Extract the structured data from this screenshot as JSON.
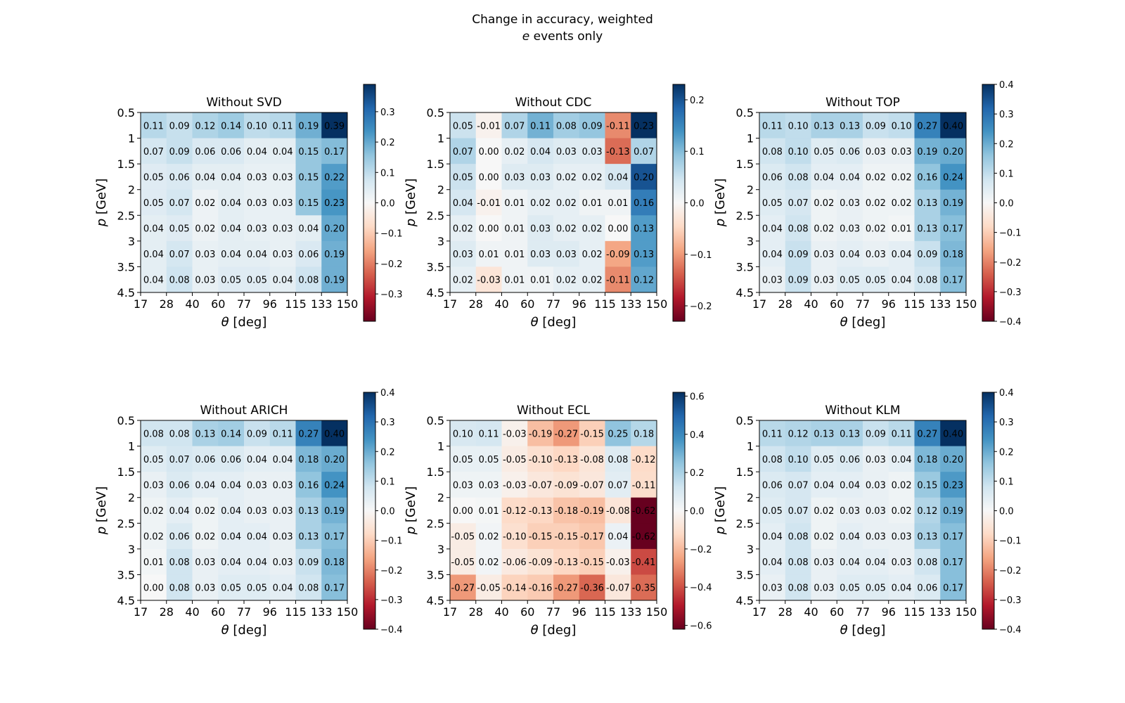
{
  "figure": {
    "title_line1": "Change in accuracy, weighted",
    "title_var": "e",
    "title_line2_rest": " events only"
  },
  "chart_data": [
    {
      "type": "heatmap",
      "title": "Without SVD",
      "xlabel_var": "θ",
      "xlabel_unit": " [deg]",
      "ylabel_var": "p",
      "ylabel_unit": " [GeV]",
      "x_edges": [
        "17",
        "28",
        "40",
        "60",
        "77",
        "96",
        "115",
        "133",
        "150"
      ],
      "y_edges": [
        "0.5",
        "1",
        "1.5",
        "2",
        "2.5",
        "3",
        "3.5",
        "4.5"
      ],
      "values": [
        [
          0.11,
          0.09,
          0.12,
          0.14,
          0.1,
          0.11,
          0.19,
          0.39
        ],
        [
          0.07,
          0.09,
          0.06,
          0.06,
          0.04,
          0.04,
          0.15,
          0.17
        ],
        [
          0.05,
          0.06,
          0.04,
          0.04,
          0.03,
          0.03,
          0.15,
          0.22
        ],
        [
          0.05,
          0.07,
          0.02,
          0.04,
          0.03,
          0.03,
          0.15,
          0.23
        ],
        [
          0.04,
          0.05,
          0.02,
          0.04,
          0.03,
          0.03,
          0.04,
          0.2
        ],
        [
          0.04,
          0.07,
          0.03,
          0.04,
          0.04,
          0.03,
          0.06,
          0.19
        ],
        [
          0.04,
          0.08,
          0.03,
          0.05,
          0.05,
          0.04,
          0.08,
          0.19
        ]
      ],
      "cbar_range": [
        -0.39,
        0.39
      ],
      "cbar_ticks": [
        "0.3",
        "0.2",
        "0.1",
        "0.0",
        "−0.1",
        "−0.2",
        "−0.3"
      ],
      "cbar_tick_values": [
        0.3,
        0.2,
        0.1,
        0.0,
        -0.1,
        -0.2,
        -0.3
      ]
    },
    {
      "type": "heatmap",
      "title": "Without CDC",
      "xlabel_var": "θ",
      "xlabel_unit": " [deg]",
      "ylabel_var": "p",
      "ylabel_unit": " [GeV]",
      "x_edges": [
        "17",
        "28",
        "40",
        "60",
        "77",
        "96",
        "115",
        "133",
        "150"
      ],
      "y_edges": [
        "0.5",
        "1",
        "1.5",
        "2",
        "2.5",
        "3",
        "3.5",
        "4.5"
      ],
      "values": [
        [
          0.05,
          -0.01,
          0.07,
          0.11,
          0.08,
          0.09,
          -0.11,
          0.23
        ],
        [
          0.07,
          0.0,
          0.02,
          0.04,
          0.03,
          0.03,
          -0.13,
          0.07
        ],
        [
          0.05,
          0.0,
          0.03,
          0.03,
          0.02,
          0.02,
          0.04,
          0.2
        ],
        [
          0.04,
          -0.01,
          0.01,
          0.02,
          0.02,
          0.01,
          0.01,
          0.16
        ],
        [
          0.02,
          0.0,
          0.01,
          0.03,
          0.02,
          0.02,
          0.0,
          0.13
        ],
        [
          0.03,
          0.01,
          0.01,
          0.03,
          0.03,
          0.02,
          -0.09,
          0.13
        ],
        [
          0.02,
          -0.03,
          0.01,
          0.01,
          0.02,
          0.02,
          -0.11,
          0.12
        ]
      ],
      "cbar_range": [
        -0.23,
        0.23
      ],
      "cbar_ticks": [
        "0.2",
        "0.1",
        "0.0",
        "−0.1",
        "−0.2"
      ],
      "cbar_tick_values": [
        0.2,
        0.1,
        0.0,
        -0.1,
        -0.2
      ]
    },
    {
      "type": "heatmap",
      "title": "Without TOP",
      "xlabel_var": "θ",
      "xlabel_unit": " [deg]",
      "ylabel_var": "p",
      "ylabel_unit": " [GeV]",
      "x_edges": [
        "17",
        "28",
        "40",
        "60",
        "77",
        "96",
        "115",
        "133",
        "150"
      ],
      "y_edges": [
        "0.5",
        "1",
        "1.5",
        "2",
        "2.5",
        "3",
        "3.5",
        "4.5"
      ],
      "values": [
        [
          0.11,
          0.1,
          0.13,
          0.13,
          0.09,
          0.1,
          0.27,
          0.4
        ],
        [
          0.08,
          0.1,
          0.05,
          0.06,
          0.03,
          0.03,
          0.19,
          0.2
        ],
        [
          0.06,
          0.08,
          0.04,
          0.04,
          0.02,
          0.02,
          0.16,
          0.24
        ],
        [
          0.05,
          0.07,
          0.02,
          0.03,
          0.02,
          0.02,
          0.13,
          0.19
        ],
        [
          0.04,
          0.08,
          0.02,
          0.03,
          0.02,
          0.01,
          0.13,
          0.17
        ],
        [
          0.04,
          0.09,
          0.03,
          0.04,
          0.03,
          0.04,
          0.09,
          0.18
        ],
        [
          0.03,
          0.09,
          0.03,
          0.05,
          0.05,
          0.04,
          0.08,
          0.17
        ]
      ],
      "cbar_range": [
        -0.4,
        0.4
      ],
      "cbar_ticks": [
        "0.4",
        "0.3",
        "0.2",
        "0.1",
        "0.0",
        "−0.1",
        "−0.2",
        "−0.3",
        "−0.4"
      ],
      "cbar_tick_values": [
        0.4,
        0.3,
        0.2,
        0.1,
        0.0,
        -0.1,
        -0.2,
        -0.3,
        -0.4
      ]
    },
    {
      "type": "heatmap",
      "title": "Without ARICH",
      "xlabel_var": "θ",
      "xlabel_unit": " [deg]",
      "ylabel_var": "p",
      "ylabel_unit": " [GeV]",
      "x_edges": [
        "17",
        "28",
        "40",
        "60",
        "77",
        "96",
        "115",
        "133",
        "150"
      ],
      "y_edges": [
        "0.5",
        "1",
        "1.5",
        "2",
        "2.5",
        "3",
        "3.5",
        "4.5"
      ],
      "values": [
        [
          0.08,
          0.08,
          0.13,
          0.14,
          0.09,
          0.11,
          0.27,
          0.4
        ],
        [
          0.05,
          0.07,
          0.06,
          0.06,
          0.04,
          0.04,
          0.18,
          0.2
        ],
        [
          0.03,
          0.06,
          0.04,
          0.04,
          0.03,
          0.03,
          0.16,
          0.24
        ],
        [
          0.02,
          0.04,
          0.02,
          0.04,
          0.03,
          0.03,
          0.13,
          0.19
        ],
        [
          0.02,
          0.06,
          0.02,
          0.04,
          0.04,
          0.03,
          0.13,
          0.17
        ],
        [
          0.01,
          0.08,
          0.03,
          0.04,
          0.04,
          0.03,
          0.09,
          0.18
        ],
        [
          -0.0,
          0.08,
          0.03,
          0.05,
          0.05,
          0.04,
          0.08,
          0.17
        ]
      ],
      "cbar_range": [
        -0.4,
        0.4
      ],
      "cbar_ticks": [
        "0.4",
        "0.3",
        "0.2",
        "0.1",
        "0.0",
        "−0.1",
        "−0.2",
        "−0.3",
        "−0.4"
      ],
      "cbar_tick_values": [
        0.4,
        0.3,
        0.2,
        0.1,
        0.0,
        -0.1,
        -0.2,
        -0.3,
        -0.4
      ]
    },
    {
      "type": "heatmap",
      "title": "Without ECL",
      "xlabel_var": "θ",
      "xlabel_unit": " [deg]",
      "ylabel_var": "p",
      "ylabel_unit": " [GeV]",
      "x_edges": [
        "17",
        "28",
        "40",
        "60",
        "77",
        "96",
        "115",
        "133",
        "150"
      ],
      "y_edges": [
        "0.5",
        "1",
        "1.5",
        "2",
        "2.5",
        "3",
        "3.5",
        "4.5"
      ],
      "values": [
        [
          0.1,
          0.11,
          -0.03,
          -0.19,
          -0.27,
          -0.15,
          0.25,
          0.18
        ],
        [
          0.05,
          0.05,
          -0.05,
          -0.1,
          -0.13,
          -0.08,
          0.08,
          -0.12
        ],
        [
          0.03,
          0.03,
          -0.03,
          -0.07,
          -0.09,
          -0.07,
          0.07,
          -0.11
        ],
        [
          -0.0,
          0.01,
          -0.12,
          -0.13,
          -0.18,
          -0.19,
          -0.08,
          -0.62
        ],
        [
          -0.05,
          0.02,
          -0.1,
          -0.15,
          -0.15,
          -0.17,
          0.04,
          -0.62
        ],
        [
          -0.05,
          0.02,
          -0.06,
          -0.09,
          -0.13,
          -0.15,
          -0.03,
          -0.41
        ],
        [
          -0.27,
          -0.05,
          -0.14,
          -0.16,
          -0.27,
          -0.36,
          -0.07,
          -0.35
        ]
      ],
      "cbar_range": [
        -0.62,
        0.62
      ],
      "cbar_ticks": [
        "0.6",
        "0.4",
        "0.2",
        "0.0",
        "−0.2",
        "−0.4",
        "−0.6"
      ],
      "cbar_tick_values": [
        0.6,
        0.4,
        0.2,
        0.0,
        -0.2,
        -0.4,
        -0.6
      ]
    },
    {
      "type": "heatmap",
      "title": "Without KLM",
      "xlabel_var": "θ",
      "xlabel_unit": " [deg]",
      "ylabel_var": "p",
      "ylabel_unit": " [GeV]",
      "x_edges": [
        "17",
        "28",
        "40",
        "60",
        "77",
        "96",
        "115",
        "133",
        "150"
      ],
      "y_edges": [
        "0.5",
        "1",
        "1.5",
        "2",
        "2.5",
        "3",
        "3.5",
        "4.5"
      ],
      "values": [
        [
          0.11,
          0.12,
          0.13,
          0.13,
          0.09,
          0.11,
          0.27,
          0.4
        ],
        [
          0.08,
          0.1,
          0.05,
          0.06,
          0.03,
          0.04,
          0.18,
          0.2
        ],
        [
          0.06,
          0.07,
          0.04,
          0.04,
          0.03,
          0.02,
          0.15,
          0.23
        ],
        [
          0.05,
          0.07,
          0.02,
          0.03,
          0.03,
          0.02,
          0.12,
          0.19
        ],
        [
          0.04,
          0.08,
          0.02,
          0.04,
          0.03,
          0.03,
          0.13,
          0.17
        ],
        [
          0.04,
          0.08,
          0.03,
          0.04,
          0.04,
          0.03,
          0.08,
          0.17
        ],
        [
          0.03,
          0.08,
          0.03,
          0.05,
          0.05,
          0.04,
          0.06,
          0.17
        ]
      ],
      "cbar_range": [
        -0.4,
        0.4
      ],
      "cbar_ticks": [
        "0.4",
        "0.3",
        "0.2",
        "0.1",
        "0.0",
        "−0.1",
        "−0.2",
        "−0.3",
        "−0.4"
      ],
      "cbar_tick_values": [
        0.4,
        0.3,
        0.2,
        0.1,
        0.0,
        -0.1,
        -0.2,
        -0.3,
        -0.4
      ]
    }
  ]
}
